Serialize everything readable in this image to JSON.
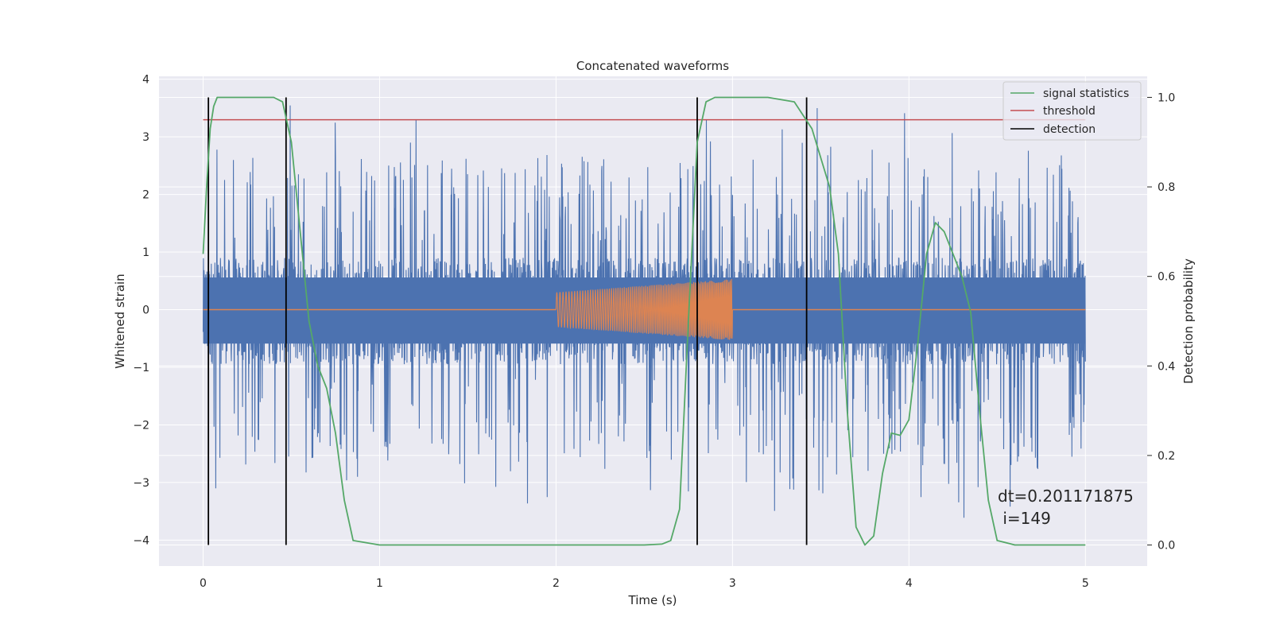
{
  "chart_data": {
    "type": "line",
    "title": "Concatenated waveforms",
    "xlabel": "Time (s)",
    "ylabel": "Whitened strain",
    "ylabel_right": "Detection probability",
    "xlim": [
      -0.25,
      5.35
    ],
    "ylim": [
      -4.45,
      4.05
    ],
    "ylim_right": [
      -0.047,
      1.047
    ],
    "x_ticks": [
      0,
      1,
      2,
      3,
      4,
      5
    ],
    "x_tick_labels": [
      "0",
      "1",
      "2",
      "3",
      "4",
      "5"
    ],
    "y_ticks": [
      -4,
      -3,
      -2,
      -1,
      0,
      1,
      2,
      3,
      4
    ],
    "y_tick_labels": [
      "−4",
      "−3",
      "−2",
      "−1",
      "0",
      "1",
      "2",
      "3",
      "4"
    ],
    "y_right_ticks": [
      0.0,
      0.2,
      0.4,
      0.6,
      0.8,
      1.0
    ],
    "y_right_tick_labels": [
      "0.0",
      "0.2",
      "0.4",
      "0.6",
      "0.8",
      "1.0"
    ],
    "grid": true,
    "legend_position": "top-right",
    "colors": {
      "strain": "#4c72b0",
      "injection": "#dd8452",
      "signal_statistics": "#55a868",
      "threshold": "#c44e52",
      "detection": "#000000",
      "background": "#eaeaf2",
      "grid": "#ffffff"
    },
    "strain_noise": {
      "x_range": [
        0,
        5
      ],
      "band": [
        -0.95,
        0.9
      ],
      "peak_envelope": [
        -3.7,
        3.6
      ]
    },
    "injection": {
      "x_start": 2.0,
      "x_end": 3.0,
      "amplitude_start": 0.3,
      "amplitude_end": 0.53
    },
    "threshold": {
      "value": 0.95,
      "x_range": [
        0,
        5
      ]
    },
    "detections": [
      0.03,
      0.47,
      2.8,
      3.42
    ],
    "signal_statistics": {
      "x": [
        0.0,
        0.02,
        0.04,
        0.06,
        0.08,
        0.12,
        0.2,
        0.3,
        0.4,
        0.45,
        0.5,
        0.55,
        0.6,
        0.65,
        0.7,
        0.75,
        0.8,
        0.85,
        1.0,
        1.5,
        2.0,
        2.5,
        2.6,
        2.65,
        2.7,
        2.75,
        2.8,
        2.85,
        2.9,
        3.0,
        3.2,
        3.35,
        3.45,
        3.55,
        3.6,
        3.65,
        3.7,
        3.75,
        3.8,
        3.85,
        3.9,
        3.95,
        4.0,
        4.05,
        4.1,
        4.15,
        4.2,
        4.3,
        4.35,
        4.4,
        4.45,
        4.5,
        4.6,
        4.8,
        5.0
      ],
      "y": [
        0.65,
        0.8,
        0.93,
        0.98,
        1.0,
        1.0,
        1.0,
        1.0,
        1.0,
        0.99,
        0.9,
        0.7,
        0.5,
        0.4,
        0.35,
        0.25,
        0.1,
        0.01,
        0.0,
        0.0,
        0.0,
        0.0,
        0.002,
        0.01,
        0.08,
        0.5,
        0.9,
        0.99,
        1.0,
        1.0,
        1.0,
        0.99,
        0.93,
        0.8,
        0.65,
        0.3,
        0.04,
        0.0,
        0.02,
        0.16,
        0.25,
        0.245,
        0.28,
        0.45,
        0.65,
        0.72,
        0.7,
        0.6,
        0.52,
        0.3,
        0.1,
        0.01,
        0.0,
        0.0,
        0.0
      ]
    }
  },
  "legend": {
    "signal_statistics": "signal statistics",
    "threshold": "threshold",
    "detection": "detection"
  },
  "annotation": {
    "dt": "dt=0.201171875",
    "i": " i=149"
  }
}
